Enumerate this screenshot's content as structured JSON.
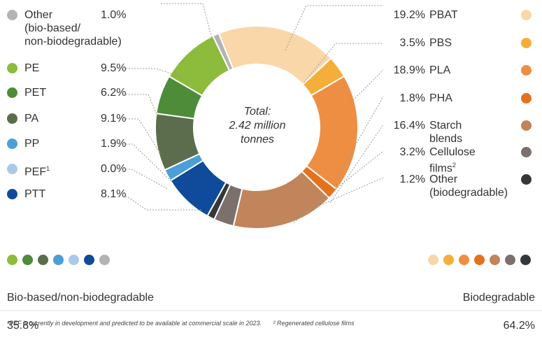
{
  "chart_data": {
    "type": "pie",
    "center_label": [
      "Total:",
      "2.42 million",
      "tonnes"
    ],
    "slices": [
      {
        "name": "PBAT",
        "value": 19.2,
        "label": "19.2%",
        "color": "#f9d7a9",
        "group": "biodegradable"
      },
      {
        "name": "PBS",
        "value": 3.5,
        "label": "3.5%",
        "color": "#f6ae3a",
        "group": "biodegradable"
      },
      {
        "name": "PLA",
        "value": 18.9,
        "label": "18.9%",
        "color": "#ee8e43",
        "group": "biodegradable"
      },
      {
        "name": "PHA",
        "value": 1.8,
        "label": "1.8%",
        "color": "#e4721c",
        "group": "biodegradable"
      },
      {
        "name": "Starch blends",
        "value": 16.4,
        "label": "16.4%",
        "color": "#c2845a",
        "group": "biodegradable"
      },
      {
        "name": "Cellulose films",
        "sup": "2",
        "value": 3.2,
        "label": "3.2%",
        "color": "#7b706b",
        "group": "biodegradable"
      },
      {
        "name": "Other\n(biodegradable)",
        "value": 1.2,
        "label": "1.2%",
        "color": "#35383b",
        "group": "biodegradable"
      },
      {
        "name": "PTT",
        "value": 8.1,
        "label": "8.1%",
        "color": "#0f4b9a",
        "group": "bio-based"
      },
      {
        "name": "PEF",
        "sup": "1",
        "value": 0.0,
        "label": "0.0%",
        "color": "#a9c9ea",
        "group": "bio-based"
      },
      {
        "name": "PP",
        "value": 1.9,
        "label": "1.9%",
        "color": "#4b9ed8",
        "group": "bio-based"
      },
      {
        "name": "PA",
        "value": 9.1,
        "label": "9.1%",
        "color": "#5b6d4d",
        "group": "bio-based"
      },
      {
        "name": "PET",
        "value": 6.2,
        "label": "6.2%",
        "color": "#4e8c3a",
        "group": "bio-based"
      },
      {
        "name": "PE",
        "value": 9.5,
        "label": "9.5%",
        "color": "#8dbb3b",
        "group": "bio-based"
      },
      {
        "name": "Other\n(bio-based/\nnon-biodegradable)",
        "value": 1.0,
        "label": "1.0%",
        "color": "#b3b3b3",
        "group": "bio-based"
      }
    ],
    "groups": [
      {
        "name": "Bio-based/non-biodegradable",
        "value": 35.8,
        "label": "35.8%"
      },
      {
        "name": "Biodegradable",
        "value": 64.2,
        "label": "64.2%"
      }
    ]
  },
  "footnotes": [
    "¹PEF is currently in development and predicted to be available at commercial scale in 2023.",
    "² Regenerated cellulose films"
  ]
}
